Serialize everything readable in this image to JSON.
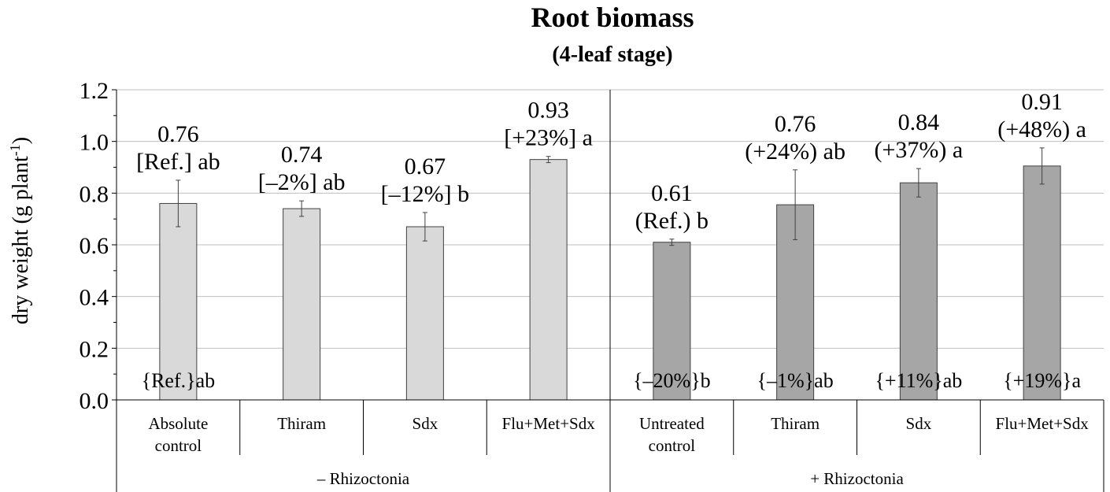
{
  "chart_data": {
    "type": "bar",
    "title": "Root biomass",
    "subtitle": "(4-leaf stage)",
    "ylabel_main": "dry weight (g plant",
    "ylabel_sup": "-1",
    "ylabel_close": ")",
    "ylim": [
      0,
      1.2
    ],
    "yticks": [
      "0.0",
      "0.2",
      "0.4",
      "0.6",
      "0.8",
      "1.0",
      "1.2"
    ],
    "grid": true,
    "groups": [
      {
        "label": "– Rhizoctonia",
        "color": "#d9d9d9"
      },
      {
        "label": "+ Rhizoctonia",
        "color": "#a6a6a6"
      }
    ],
    "bars": [
      {
        "cat1": "Absolute",
        "cat2": "control",
        "group": 0,
        "value": 0.76,
        "err": 0.09,
        "top1": "0.76",
        "top2": "[Ref.] ab",
        "bottom": "{Ref.}ab"
      },
      {
        "cat1": "Thiram",
        "cat2": "",
        "group": 0,
        "value": 0.74,
        "err": 0.03,
        "top1": "0.74",
        "top2": "[–2%] ab",
        "bottom": ""
      },
      {
        "cat1": "Sdx",
        "cat2": "",
        "group": 0,
        "value": 0.67,
        "err": 0.055,
        "top1": "0.67",
        "top2": "[–12%] b",
        "bottom": ""
      },
      {
        "cat1": "Flu+Met+Sdx",
        "cat2": "",
        "group": 0,
        "value": 0.93,
        "err": 0.012,
        "top1": "0.93",
        "top2": "[+23%] a",
        "bottom": ""
      },
      {
        "cat1": "Untreated",
        "cat2": "control",
        "group": 1,
        "value": 0.61,
        "err": 0.012,
        "top1": "0.61",
        "top2": "(Ref.) b",
        "bottom": "{–20%}b"
      },
      {
        "cat1": "Thiram",
        "cat2": "",
        "group": 1,
        "value": 0.755,
        "err": 0.135,
        "top1": "0.76",
        "top2": "(+24%) ab",
        "bottom": "{–1%}ab"
      },
      {
        "cat1": "Sdx",
        "cat2": "",
        "group": 1,
        "value": 0.84,
        "err": 0.055,
        "top1": "0.84",
        "top2": "(+37%) a",
        "bottom": "{+11%}ab"
      },
      {
        "cat1": "Flu+Met+Sdx",
        "cat2": "",
        "group": 1,
        "value": 0.905,
        "err": 0.07,
        "top1": "0.91",
        "top2": "(+48%) a",
        "bottom": "{+19%}a"
      }
    ]
  }
}
